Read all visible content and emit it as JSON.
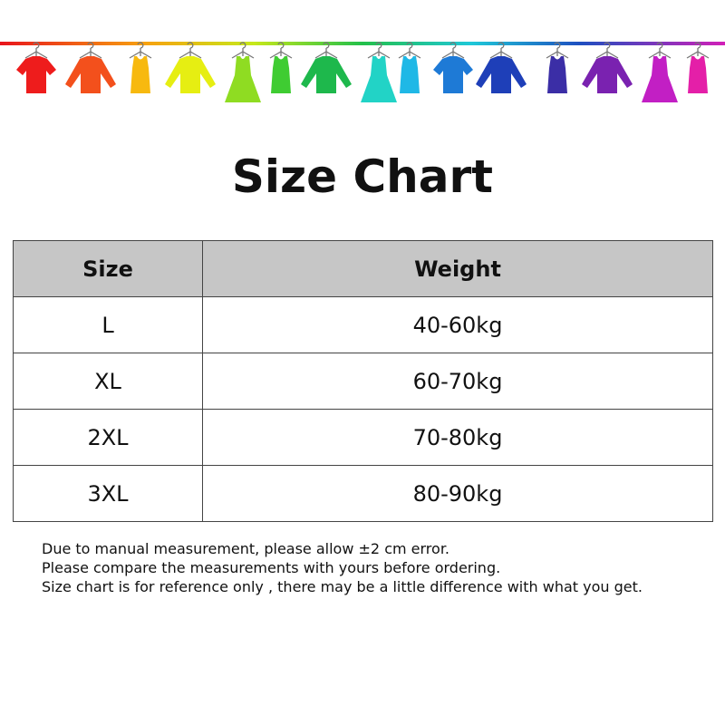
{
  "banner": {
    "icon": "clothes-on-line-illustration",
    "colors": [
      "#ee1c1c",
      "#f3501c",
      "#f7b90f",
      "#e6ee12",
      "#8fdc22",
      "#3fcc32",
      "#1eb84c",
      "#1ecb86",
      "#22d3c6",
      "#1fb8e6",
      "#1e7ad6",
      "#1e3fb8",
      "#3b2ea6",
      "#7a22b0",
      "#c21fc4",
      "#e41fa8"
    ]
  },
  "title": "Size Chart",
  "table": {
    "headers": [
      "Size",
      "Weight"
    ],
    "rows": [
      [
        "L",
        "40-60kg"
      ],
      [
        "XL",
        "60-70kg"
      ],
      [
        "2XL",
        "70-80kg"
      ],
      [
        "3XL",
        "80-90kg"
      ]
    ]
  },
  "notes": [
    "Due to manual measurement, please allow ±2 cm error.",
    "Please compare the measurements with yours before ordering.",
    "Size chart is for reference only , there may be a little difference with what you get."
  ]
}
